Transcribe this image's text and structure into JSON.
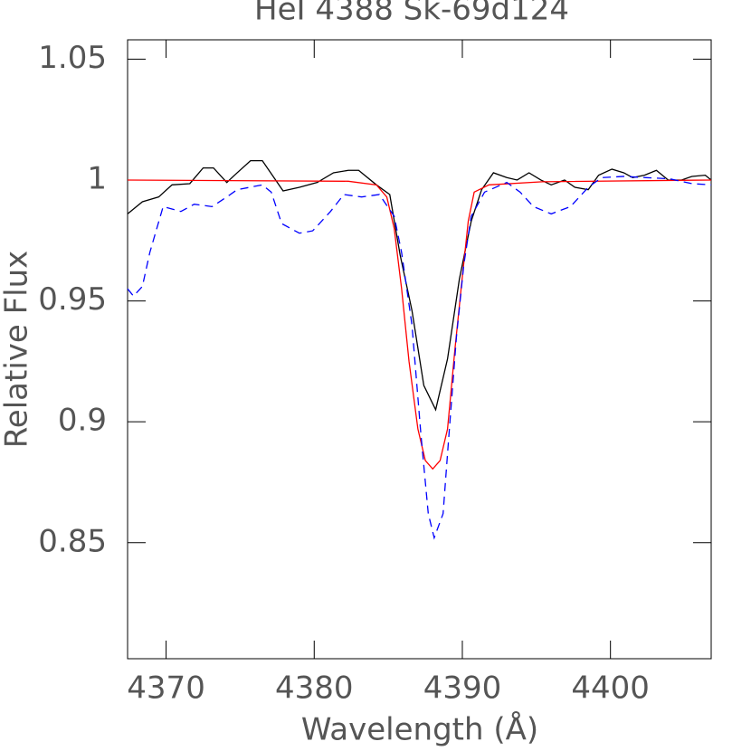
{
  "chart_data": {
    "type": "line",
    "title": "HeI 4388 Sk-69d124",
    "x_label": "Wavelength (Å)",
    "y_label": "Relative Flux",
    "xlim": [
      4367.4,
      4406.8
    ],
    "ylim": [
      0.802,
      1.058
    ],
    "xticks": [
      4370,
      4380,
      4390,
      4400
    ],
    "yticks": [
      0.85,
      0.9,
      0.95,
      1,
      1.05
    ],
    "series": [
      {
        "color": "#000000",
        "dashed": false,
        "x": [
          4367.4,
          4368.4,
          4369.5,
          4370.4,
          4371.6,
          4372.5,
          4373.2,
          4374.1,
          4374.8,
          4375.7,
          4376.5,
          4377.9,
          4379.0,
          4380.2,
          4381.3,
          4382.3,
          4383.0,
          4384.2,
          4385.1,
          4385.8,
          4386.6,
          4387.4,
          4388.2,
          4389.0,
          4389.8,
          4390.6,
          4391.3,
          4392.1,
          4393.0,
          4393.7,
          4394.5,
          4395.3,
          4396.0,
          4396.9,
          4397.6,
          4398.5,
          4399.2,
          4400.1,
          4400.9,
          4401.5,
          4402.3,
          4403.1,
          4403.9,
          4404.8,
          4405.5,
          4406.4,
          4406.8
        ],
        "values": [
          0.986,
          0.991,
          0.993,
          0.998,
          0.9985,
          1.005,
          1.005,
          0.999,
          1.003,
          1.008,
          1.008,
          0.9955,
          0.997,
          0.999,
          1.003,
          1.004,
          1.004,
          0.998,
          0.994,
          0.969,
          0.946,
          0.915,
          0.905,
          0.926,
          0.959,
          0.983,
          0.996,
          1.003,
          1.001,
          1.0,
          1.003,
          1.0,
          0.998,
          1.0,
          0.997,
          0.996,
          1.002,
          1.0045,
          1.003,
          1.001,
          1.002,
          1.004,
          1.0,
          1.0,
          1.0015,
          1.002,
          1.0
        ]
      },
      {
        "color": "#ff0000",
        "dashed": false,
        "x": [
          4367.4,
          4382.3,
          4384.2,
          4384.9,
          4385.4,
          4385.9,
          4386.4,
          4387.0,
          4387.5,
          4388.0,
          4388.5,
          4389.0,
          4389.5,
          4390.0,
          4390.4,
          4390.8,
          4391.8,
          4395.4,
          4406.8
        ],
        "values": [
          1.0,
          0.9995,
          0.998,
          0.993,
          0.98,
          0.955,
          0.925,
          0.897,
          0.884,
          0.8805,
          0.884,
          0.897,
          0.93,
          0.96,
          0.983,
          0.995,
          0.998,
          0.9993,
          1.0
        ]
      },
      {
        "color": "#0000ff",
        "dashed": true,
        "x": [
          4367.4,
          4367.8,
          4368.4,
          4368.9,
          4369.8,
          4371.0,
          4371.9,
          4373.1,
          4374.1,
          4374.8,
          4376.5,
          4377.1,
          4377.8,
          4379.0,
          4379.9,
          4381.1,
          4382.0,
          4383.2,
          4384.4,
          4385.4,
          4385.9,
          4386.6,
          4387.2,
          4387.7,
          4388.1,
          4388.7,
          4389.1,
          4389.6,
          4390.1,
          4390.6,
          4391.5,
          4393.0,
          4393.9,
          4394.8,
          4396.0,
          4397.3,
          4398.5,
          4399.4,
          4400.9,
          4402.4,
          4404.0,
          4405.5,
          4406.8
        ],
        "values": [
          0.955,
          0.952,
          0.956,
          0.97,
          0.989,
          0.987,
          0.99,
          0.989,
          0.993,
          0.996,
          0.998,
          0.995,
          0.982,
          0.978,
          0.979,
          0.987,
          0.994,
          0.993,
          0.994,
          0.985,
          0.97,
          0.94,
          0.895,
          0.862,
          0.852,
          0.862,
          0.895,
          0.935,
          0.965,
          0.985,
          0.995,
          0.999,
          0.995,
          0.989,
          0.986,
          0.989,
          0.997,
          1.001,
          1.0015,
          1.001,
          1.0005,
          0.9985,
          0.998
        ]
      }
    ]
  }
}
